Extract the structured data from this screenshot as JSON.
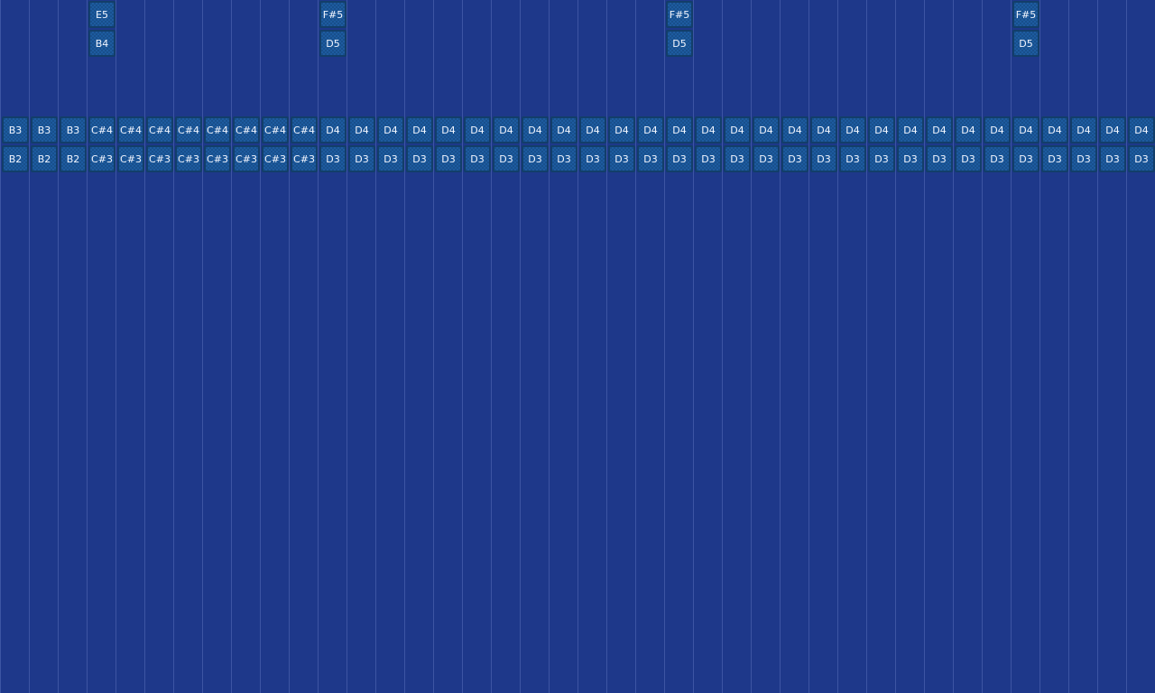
{
  "colors": {
    "background": "#1e388a",
    "grid_line": "#3d55a3",
    "note_fill": "#1b5596",
    "note_border": "#123e6a",
    "note_text": "#f2f6ff"
  },
  "columns": [
    {
      "lower": [
        "B3",
        "B2"
      ]
    },
    {
      "lower": [
        "B3",
        "B2"
      ]
    },
    {
      "lower": [
        "B3",
        "B2"
      ]
    },
    {
      "upper": [
        "E5",
        "B4"
      ],
      "lower": [
        "C#4",
        "C#3"
      ]
    },
    {
      "lower": [
        "C#4",
        "C#3"
      ]
    },
    {
      "lower": [
        "C#4",
        "C#3"
      ]
    },
    {
      "lower": [
        "C#4",
        "C#3"
      ]
    },
    {
      "lower": [
        "C#4",
        "C#3"
      ]
    },
    {
      "lower": [
        "C#4",
        "C#3"
      ]
    },
    {
      "lower": [
        "C#4",
        "C#3"
      ]
    },
    {
      "lower": [
        "C#4",
        "C#3"
      ]
    },
    {
      "upper": [
        "F#5",
        "D5"
      ],
      "lower": [
        "D4",
        "D3"
      ]
    },
    {
      "lower": [
        "D4",
        "D3"
      ]
    },
    {
      "lower": [
        "D4",
        "D3"
      ]
    },
    {
      "lower": [
        "D4",
        "D3"
      ]
    },
    {
      "lower": [
        "D4",
        "D3"
      ]
    },
    {
      "lower": [
        "D4",
        "D3"
      ]
    },
    {
      "lower": [
        "D4",
        "D3"
      ]
    },
    {
      "lower": [
        "D4",
        "D3"
      ]
    },
    {
      "lower": [
        "D4",
        "D3"
      ]
    },
    {
      "lower": [
        "D4",
        "D3"
      ]
    },
    {
      "lower": [
        "D4",
        "D3"
      ]
    },
    {
      "lower": [
        "D4",
        "D3"
      ]
    },
    {
      "upper": [
        "F#5",
        "D5"
      ],
      "lower": [
        "D4",
        "D3"
      ]
    },
    {
      "lower": [
        "D4",
        "D3"
      ]
    },
    {
      "lower": [
        "D4",
        "D3"
      ]
    },
    {
      "lower": [
        "D4",
        "D3"
      ]
    },
    {
      "lower": [
        "D4",
        "D3"
      ]
    },
    {
      "lower": [
        "D4",
        "D3"
      ]
    },
    {
      "lower": [
        "D4",
        "D3"
      ]
    },
    {
      "lower": [
        "D4",
        "D3"
      ]
    },
    {
      "lower": [
        "D4",
        "D3"
      ]
    },
    {
      "lower": [
        "D4",
        "D3"
      ]
    },
    {
      "lower": [
        "D4",
        "D3"
      ]
    },
    {
      "lower": [
        "D4",
        "D3"
      ]
    },
    {
      "upper": [
        "F#5",
        "D5"
      ],
      "lower": [
        "D4",
        "D3"
      ]
    },
    {
      "lower": [
        "D4",
        "D3"
      ]
    },
    {
      "lower": [
        "D4",
        "D3"
      ]
    },
    {
      "lower": [
        "D4",
        "D3"
      ]
    },
    {
      "lower": [
        "D4",
        "D3"
      ]
    }
  ]
}
